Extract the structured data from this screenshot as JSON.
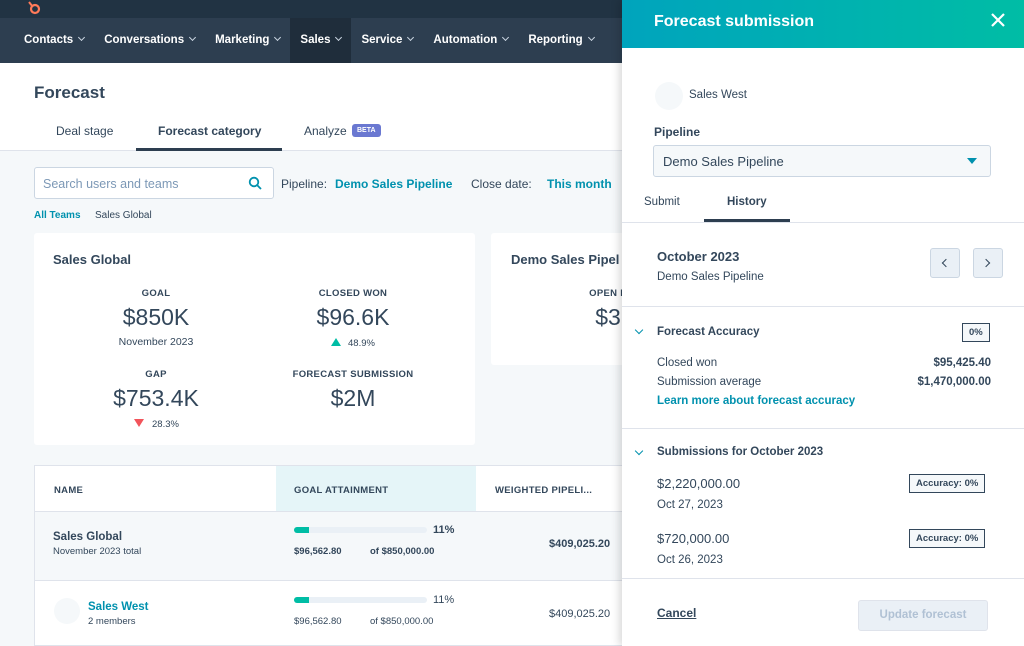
{
  "nav": [
    "Contacts",
    "Conversations",
    "Marketing",
    "Sales",
    "Service",
    "Automation",
    "Reporting"
  ],
  "page": {
    "title": "Forecast",
    "tabs": [
      "Deal stage",
      "Forecast category",
      "Analyze"
    ],
    "beta": "BETA"
  },
  "filters": {
    "search_placeholder": "Search users and teams",
    "pipeline_label": "Pipeline:",
    "pipeline": "Demo Sales Pipeline",
    "close_date_label": "Close date:",
    "close_date": "This month"
  },
  "breadcrumb": [
    "All Teams",
    "Sales Global"
  ],
  "cards": [
    {
      "title": "Sales Global",
      "metrics": [
        {
          "label": "GOAL",
          "value": "$850K",
          "sub": "November 2023"
        },
        {
          "label": "CLOSED WON",
          "value": "$96.6K",
          "change": "48.9%"
        },
        {
          "label": "GAP",
          "value": "$753.4K",
          "change": "28.3%"
        },
        {
          "label": "FORECAST SUBMISSION",
          "value": "$2M"
        }
      ]
    },
    {
      "title": "Demo Sales Pipel",
      "metrics": [
        {
          "label": "OPEN P",
          "value": "$3"
        }
      ]
    }
  ],
  "table": {
    "headers": [
      "NAME",
      "GOAL ATTAINMENT",
      "WEIGHTED PIPELI..."
    ],
    "rows": [
      {
        "name": "Sales Global",
        "sub": "November 2023 total",
        "attainment": 11,
        "attainment_label": "11%",
        "closed": "$96,562.80",
        "goal": "of $850,000.00",
        "weighted": "$409,025.20"
      },
      {
        "name": "Sales West",
        "sub": "2 members",
        "attainment": 11,
        "attainment_label": "11%",
        "closed": "$96,562.80",
        "goal": "of $850,000.00",
        "weighted": "$409,025.20"
      }
    ]
  },
  "panel": {
    "title": "Forecast submission",
    "owner": "Sales West",
    "pipeline_label": "Pipeline",
    "pipeline": "Demo Sales Pipeline",
    "tabs": [
      "Submit",
      "History"
    ],
    "period": "October 2023",
    "period_sub": "Demo Sales Pipeline",
    "accuracy": {
      "title": "Forecast Accuracy",
      "badge": "0%",
      "rows": [
        [
          "Closed won",
          "$95,425.40"
        ],
        [
          "Submission average",
          "$1,470,000.00"
        ]
      ],
      "link": "Learn more about forecast accuracy"
    },
    "submissions": {
      "title": "Submissions for October 2023",
      "items": [
        {
          "amount": "$2,220,000.00",
          "date": "Oct 27, 2023",
          "badge": "Accuracy: 0%"
        },
        {
          "amount": "$720,000.00",
          "date": "Oct 26, 2023",
          "badge": "Accuracy: 0%"
        }
      ]
    },
    "footer": {
      "cancel": "Cancel",
      "update": "Update forecast"
    }
  }
}
